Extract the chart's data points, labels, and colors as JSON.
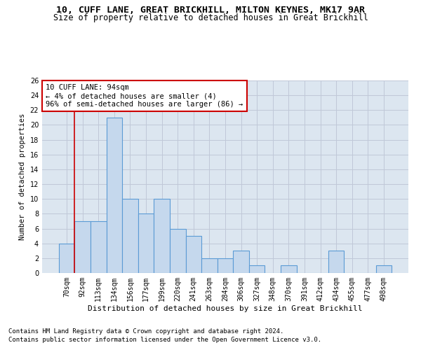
{
  "title1": "10, CUFF LANE, GREAT BRICKHILL, MILTON KEYNES, MK17 9AR",
  "title2": "Size of property relative to detached houses in Great Brickhill",
  "xlabel": "Distribution of detached houses by size in Great Brickhill",
  "ylabel": "Number of detached properties",
  "categories": [
    "70sqm",
    "92sqm",
    "113sqm",
    "134sqm",
    "156sqm",
    "177sqm",
    "199sqm",
    "220sqm",
    "241sqm",
    "263sqm",
    "284sqm",
    "306sqm",
    "327sqm",
    "348sqm",
    "370sqm",
    "391sqm",
    "412sqm",
    "434sqm",
    "455sqm",
    "477sqm",
    "498sqm"
  ],
  "values": [
    4,
    7,
    7,
    21,
    10,
    8,
    10,
    6,
    5,
    2,
    2,
    3,
    1,
    0,
    1,
    0,
    0,
    3,
    0,
    0,
    1
  ],
  "bar_color": "#c5d8ed",
  "bar_edge_color": "#5b9bd5",
  "bar_edge_width": 0.8,
  "grid_color": "#c0c8d8",
  "bg_color": "#dce6f0",
  "annotation_box_color": "#cc0000",
  "annotation_line1": "10 CUFF LANE: 94sqm",
  "annotation_line2": "← 4% of detached houses are smaller (4)",
  "annotation_line3": "96% of semi-detached houses are larger (86) →",
  "red_line_x": 0.5,
  "ylim": [
    0,
    26
  ],
  "yticks": [
    0,
    2,
    4,
    6,
    8,
    10,
    12,
    14,
    16,
    18,
    20,
    22,
    24,
    26
  ],
  "footnote1": "Contains HM Land Registry data © Crown copyright and database right 2024.",
  "footnote2": "Contains public sector information licensed under the Open Government Licence v3.0.",
  "title1_fontsize": 9.5,
  "title2_fontsize": 8.5,
  "xlabel_fontsize": 8,
  "ylabel_fontsize": 7.5,
  "tick_fontsize": 7,
  "annotation_fontsize": 7.5,
  "footnote_fontsize": 6.5
}
